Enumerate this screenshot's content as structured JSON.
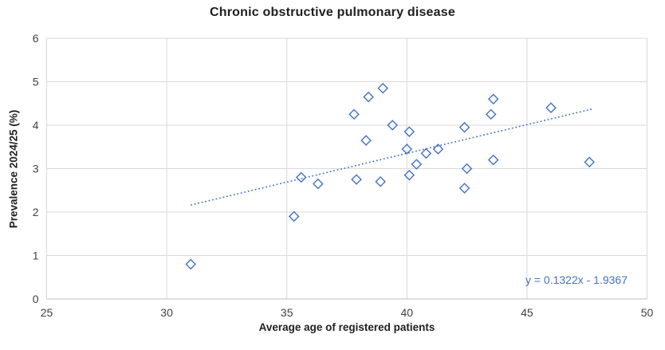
{
  "chart_data": {
    "type": "scatter",
    "title": "Chronic obstructive pulmonary disease",
    "xlabel": "Average age of registered patients",
    "ylabel": "Prevalence 2024/25 (%)",
    "xlim": [
      25,
      50
    ],
    "ylim": [
      0,
      6
    ],
    "xticks": [
      25,
      30,
      35,
      40,
      45,
      50
    ],
    "yticks": [
      0,
      1,
      2,
      3,
      4,
      5,
      6
    ],
    "grid": true,
    "legend": "none",
    "marker": "open-diamond",
    "points": [
      {
        "x": 31.0,
        "y": 0.8
      },
      {
        "x": 35.3,
        "y": 1.9
      },
      {
        "x": 35.6,
        "y": 2.8
      },
      {
        "x": 36.3,
        "y": 2.65
      },
      {
        "x": 37.8,
        "y": 4.25
      },
      {
        "x": 37.9,
        "y": 2.75
      },
      {
        "x": 38.3,
        "y": 3.65
      },
      {
        "x": 38.4,
        "y": 4.65
      },
      {
        "x": 38.9,
        "y": 2.7
      },
      {
        "x": 39.0,
        "y": 4.85
      },
      {
        "x": 39.4,
        "y": 4.0
      },
      {
        "x": 40.0,
        "y": 3.45
      },
      {
        "x": 40.1,
        "y": 3.85
      },
      {
        "x": 40.1,
        "y": 2.85
      },
      {
        "x": 40.4,
        "y": 3.1
      },
      {
        "x": 40.8,
        "y": 3.35
      },
      {
        "x": 41.3,
        "y": 3.45
      },
      {
        "x": 42.4,
        "y": 3.95
      },
      {
        "x": 42.4,
        "y": 2.55
      },
      {
        "x": 42.5,
        "y": 3.0
      },
      {
        "x": 43.5,
        "y": 4.25
      },
      {
        "x": 43.6,
        "y": 4.6
      },
      {
        "x": 43.6,
        "y": 3.2
      },
      {
        "x": 46.0,
        "y": 4.4
      },
      {
        "x": 47.6,
        "y": 3.15
      }
    ],
    "trendline": {
      "equation": "y = 0.1322x - 1.9367",
      "slope": 0.1322,
      "intercept": -1.9367,
      "x_start": 31.0,
      "x_end": 47.7,
      "style": "dotted"
    },
    "colors": {
      "marker": "#4472C4",
      "trendline": "#4472C4",
      "equation_text": "#4472C4",
      "gridline": "#D9D9D9",
      "axis_line": "#BFBFBF",
      "tick_label": "#404040",
      "title_text": "#1F1F1F",
      "background": "#FFFFFF"
    }
  }
}
